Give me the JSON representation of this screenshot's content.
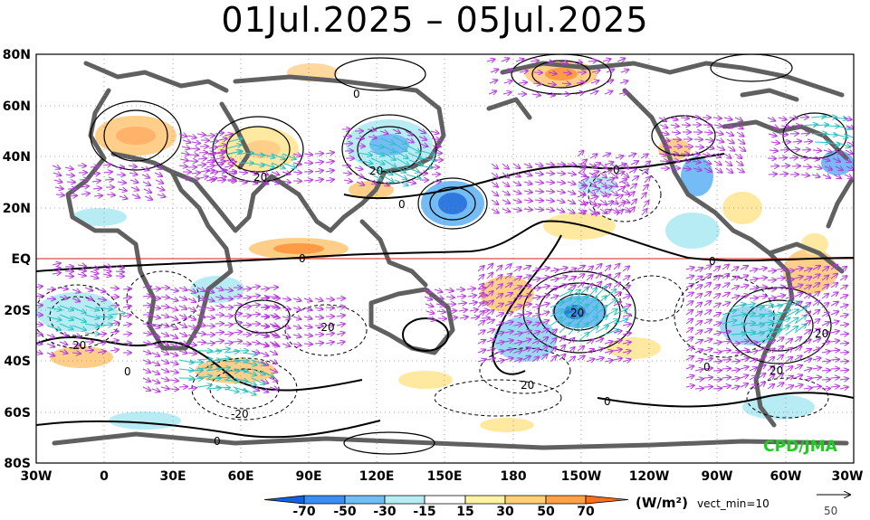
{
  "title": "01Jul.2025 – 05Jul.2025",
  "lat_labels": [
    "80N",
    "60N",
    "40N",
    "20N",
    "EQ",
    "20S",
    "40S",
    "60S",
    "80S"
  ],
  "lon_labels": [
    "30W",
    "0",
    "30E",
    "60E",
    "90E",
    "120E",
    "150E",
    "180",
    "150W",
    "120W",
    "90W",
    "60W",
    "30W"
  ],
  "colorbar": {
    "units": "(W/m²)",
    "tick_labels": [
      "-70",
      "-50",
      "-30",
      "-15",
      "15",
      "30",
      "50",
      "70"
    ],
    "colors": [
      "#1560e0",
      "#3c8ef0",
      "#74bcf5",
      "#b8ecf5",
      "#ffffff",
      "#fff3a8",
      "#ffd07a",
      "#ffa04a",
      "#ff6f1a"
    ]
  },
  "vector_note": "vect_min=10",
  "reference_vector": "50",
  "watermark": "CPD/JMA",
  "contour_labels": [
    "0",
    "0",
    "0",
    "0",
    "0",
    "0",
    "0",
    "0",
    "0",
    "20",
    "20",
    "20",
    "20",
    "20",
    "-20",
    "-20",
    "20",
    "20"
  ],
  "colors": {
    "anomaly_pos": "#ffcf8a",
    "anomaly_pos_strong": "#ff9a45",
    "anomaly_neg": "#9ad8f3",
    "anomaly_neg_strong": "#2f78e0",
    "vector": "#b23cd8",
    "vector_strong": "#2ec0c0",
    "coast": "#606060",
    "equator": "#cc2222"
  }
}
